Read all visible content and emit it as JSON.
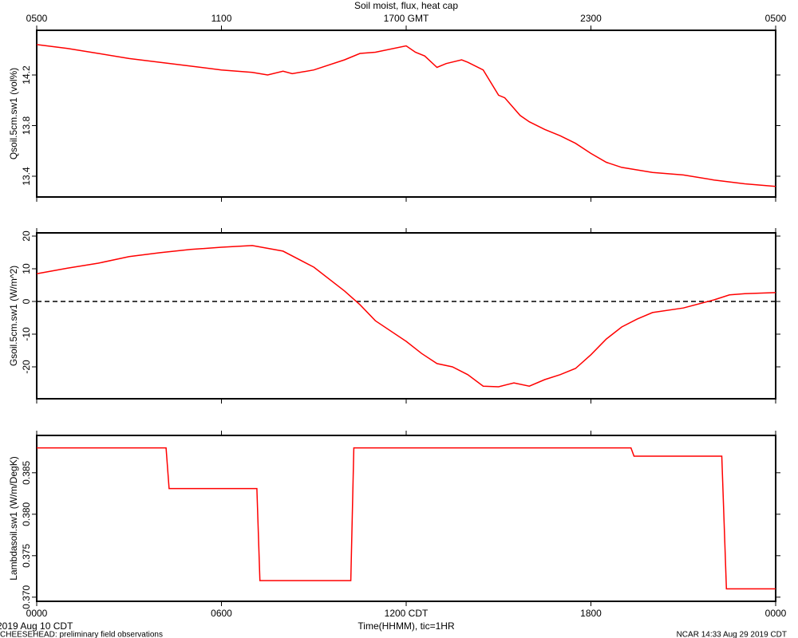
{
  "chart_data": [
    {
      "type": "line",
      "title": "Soil moist, flux, heat cap",
      "ylabel": "Qsoil.5cm.sw1 (vol%)",
      "color": "#ff0000",
      "xlim": [
        0,
        24
      ],
      "ylim": [
        13.236,
        14.553
      ],
      "yticks": [
        13.4,
        13.8,
        14.2
      ],
      "x2ticks": [
        {
          "value": 0,
          "label": "0500"
        },
        {
          "value": 6,
          "label": "1100"
        },
        {
          "value": 12,
          "label": "1700 GMT"
        },
        {
          "value": 18,
          "label": "2300"
        },
        {
          "value": 24,
          "label": "0500"
        }
      ],
      "x": [
        0,
        1,
        2,
        3,
        4,
        5,
        6,
        7,
        7.5,
        8,
        8.3,
        9,
        10,
        10.5,
        11,
        12,
        12.3,
        12.6,
        13,
        13.3,
        13.8,
        14,
        14.5,
        15,
        15.2,
        15.7,
        16,
        16.5,
        17,
        17.5,
        18,
        18.5,
        19,
        20,
        21,
        22,
        23,
        24
      ],
      "values": [
        14.44,
        14.41,
        14.37,
        14.33,
        14.3,
        14.27,
        14.24,
        14.22,
        14.2,
        14.23,
        14.21,
        14.24,
        14.32,
        14.37,
        14.38,
        14.43,
        14.38,
        14.35,
        14.26,
        14.29,
        14.32,
        14.3,
        14.24,
        14.04,
        14.02,
        13.88,
        13.83,
        13.77,
        13.72,
        13.66,
        13.58,
        13.51,
        13.47,
        13.43,
        13.41,
        13.37,
        13.34,
        13.32
      ]
    },
    {
      "type": "line",
      "ylabel": "Gsoil.5cm.sw1 (W/m^2)",
      "color": "#ff0000",
      "hline": 0,
      "xlim": [
        0,
        24
      ],
      "ylim": [
        -29.76,
        20.98
      ],
      "yticks": [
        -20,
        -10,
        0,
        10,
        20
      ],
      "x": [
        0,
        1,
        2,
        3,
        4,
        5,
        6,
        7,
        8,
        9,
        10,
        10.5,
        11,
        12,
        12.5,
        13,
        13.5,
        14,
        14.5,
        15,
        15.5,
        16,
        16.5,
        17,
        17.5,
        18,
        18.5,
        19,
        19.5,
        20,
        21,
        22,
        22.5,
        23,
        24
      ],
      "values": [
        8.5,
        10.2,
        11.7,
        13.7,
        14.9,
        15.9,
        16.6,
        17.1,
        15.4,
        10.5,
        3.2,
        -1,
        -5.9,
        -12.2,
        -15.9,
        -19,
        -20,
        -22.4,
        -25.9,
        -26.1,
        -24.9,
        -25.9,
        -23.9,
        -22.4,
        -20.5,
        -16.3,
        -11.5,
        -7.8,
        -5.4,
        -3.4,
        -2,
        0.5,
        2,
        2.4,
        2.7
      ]
    },
    {
      "type": "line",
      "ylabel": "Lambdasoil.sw1 (W/m/DegK)",
      "xlabel": "Time(HHMM), tic=1HR",
      "color": "#ff0000",
      "xlim": [
        0,
        24
      ],
      "ylim": [
        0.3695,
        0.3895
      ],
      "yticks": [
        {
          "value": 0.37,
          "label": "0.370"
        },
        0.375,
        {
          "value": 0.38,
          "label": "0.380"
        },
        0.385
      ],
      "xticks": [
        {
          "value": 0,
          "label": "0000"
        },
        {
          "value": 6,
          "label": "0600"
        },
        {
          "value": 12,
          "label": "1200 CDT"
        },
        {
          "value": 18,
          "label": "1800"
        },
        {
          "value": 24,
          "label": "0000"
        }
      ],
      "x": [
        0,
        4.2,
        4.3,
        7.15,
        7.25,
        10.2,
        10.3,
        19.3,
        19.4,
        22.25,
        22.4,
        24
      ],
      "values": [
        0.388,
        0.388,
        0.3831,
        0.3831,
        0.372,
        0.372,
        0.388,
        0.388,
        0.387,
        0.387,
        0.371,
        0.371
      ]
    }
  ],
  "footer": {
    "date": "2019 Aug 10 CDT",
    "left": "CHEESEHEAD: preliminary field observations",
    "right": "NCAR 14:33 Aug 29 2019 CDT"
  }
}
